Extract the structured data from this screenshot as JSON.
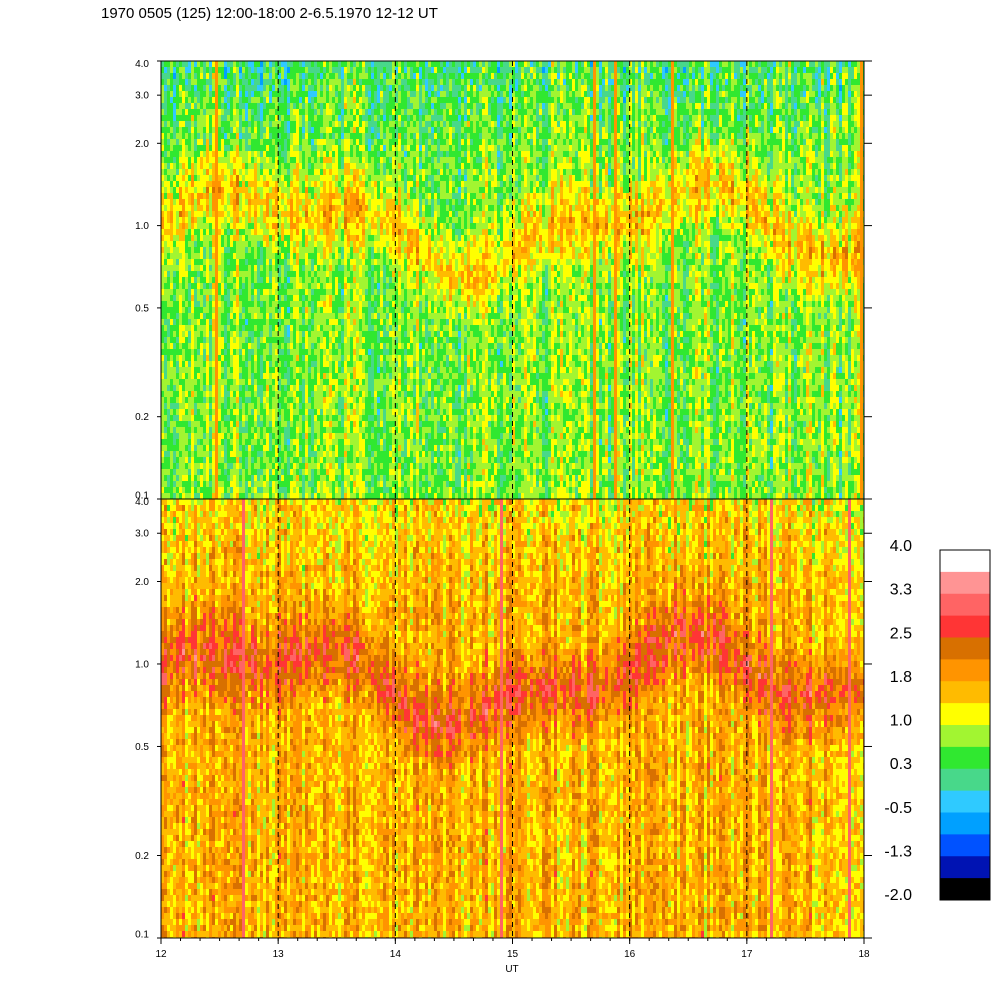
{
  "title": "1970 0505 (125) 12:00-18:00 2-6.5.1970  12-12 UT",
  "chart_data": {
    "type": "heatmap",
    "title": "1970 0505 (125) 12:00-18:00 2-6.5.1970  12-12 UT",
    "xlabel": "UT",
    "ylabel": "",
    "x_range": [
      12,
      18
    ],
    "x_ticks": [
      "12",
      "13",
      "14",
      "15",
      "16",
      "17",
      "18"
    ],
    "x_tick_values": [
      12,
      13,
      14,
      15,
      16,
      17,
      18
    ],
    "y_scale": "log",
    "y_range": [
      0.1,
      4.0
    ],
    "y_ticks": [
      "4.0",
      "3.0",
      "2.0",
      "1.0",
      "0.5",
      "0.2",
      "0.1"
    ],
    "y_tick_values": [
      4.0,
      3.0,
      2.0,
      1.0,
      0.5,
      0.2,
      0.1
    ],
    "vertical_dashed_lines_at": [
      13,
      14,
      15,
      16,
      17
    ],
    "panels": [
      {
        "id": "upper",
        "dominant_level_range": [
          0.0,
          1.5
        ],
        "band_y_center": 1.0
      },
      {
        "id": "lower",
        "dominant_level_range": [
          1.0,
          2.5
        ],
        "band_y_center": 0.9
      }
    ],
    "colorbar": {
      "labels": [
        "4.0",
        "3.3",
        "2.5",
        "1.8",
        "1.0",
        "0.3",
        "-0.5",
        "-1.3",
        "-2.0"
      ],
      "colors": [
        "#ffffff",
        "#ff9494",
        "#ff6464",
        "#ff3535",
        "#d87000",
        "#ff9400",
        "#ffbb00",
        "#ffff00",
        "#a2f531",
        "#30e830",
        "#48d88a",
        "#2fcaff",
        "#00a0ff",
        "#0052ff",
        "#0013b3",
        "#000000"
      ]
    }
  }
}
